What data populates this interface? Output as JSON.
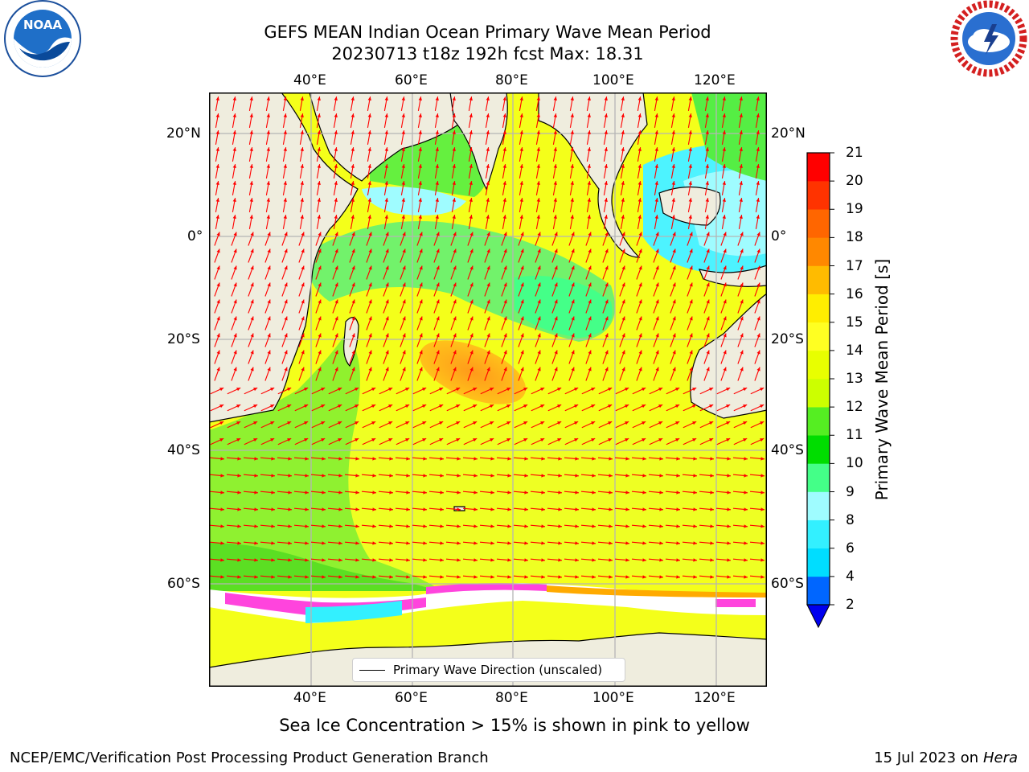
{
  "header": {
    "title_line1": "GEFS MEAN Indian Ocean Primary Wave Mean Period",
    "title_line2": "20230713 t18z 192h fcst   Max: 18.31"
  },
  "logos": {
    "left": {
      "icon": "noaa-logo",
      "text": "NOAA"
    },
    "right": {
      "icon": "nws-logo",
      "ring_text": "NATIONAL WEATHER SERVICE"
    }
  },
  "map": {
    "lon_labels": [
      "40°E",
      "60°E",
      "80°E",
      "100°E",
      "120°E"
    ],
    "lat_labels": [
      "20°N",
      "0°",
      "20°S",
      "40°S",
      "60°S"
    ],
    "land_color": "#efedde",
    "arrow_color": "#ff0000",
    "ice_note_colors": [
      "#ff44dd",
      "#ffaa00",
      "#ffff00"
    ]
  },
  "legend": {
    "label": "Primary Wave Direction (unscaled)"
  },
  "colorbar": {
    "label": "Primary Wave Mean Period [s]",
    "ticks": [
      "2",
      "4",
      "6",
      "8",
      "9",
      "10",
      "11",
      "12",
      "13",
      "14",
      "15",
      "16",
      "17",
      "18",
      "19",
      "20",
      "21"
    ],
    "colors": [
      "#0066ff",
      "#00ddff",
      "#33f0ff",
      "#9ffcff",
      "#44ff88",
      "#00dd00",
      "#55ee22",
      "#ccff00",
      "#e8ff00",
      "#ffff22",
      "#ffee00",
      "#ffbb00",
      "#ff8800",
      "#ff6600",
      "#ff3300",
      "#ff0000"
    ],
    "under_color": "#0000ee"
  },
  "notes": {
    "ice": "Sea Ice Concentration > 15% is shown in pink to yellow"
  },
  "footer": {
    "left": "NCEP/EMC/Verification Post Processing Product Generation Branch",
    "date_text": "15 Jul 2023 on ",
    "host": "Hera"
  }
}
